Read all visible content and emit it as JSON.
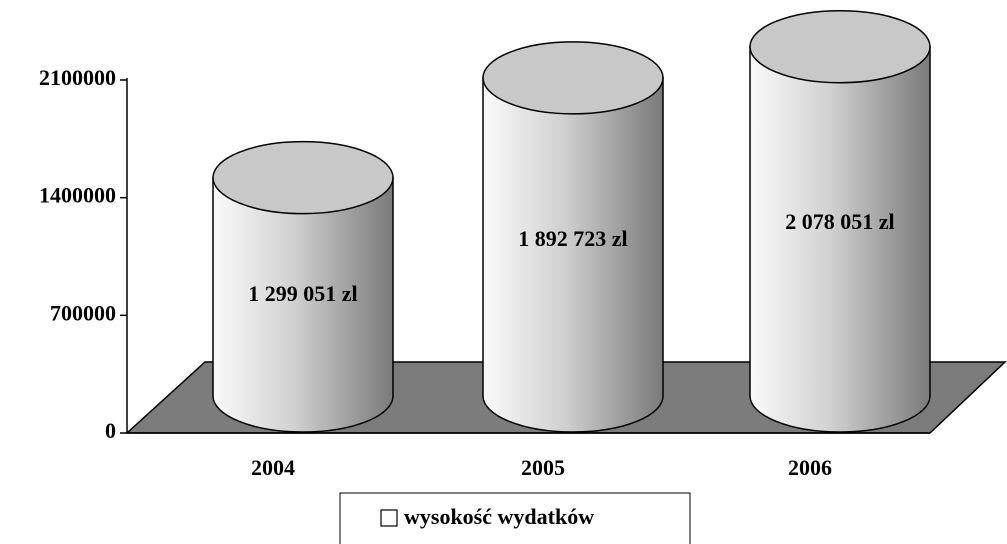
{
  "chart_data": {
    "type": "cylinder",
    "categories": [
      "2004",
      "2005",
      "2006"
    ],
    "series": [
      {
        "name": "wysokość wydatków",
        "color": "#d8d8d8",
        "values": [
          1299051,
          1892723,
          2078051
        ],
        "value_labels": [
          "1 299 051 zl",
          "1 892 723 zl",
          "2 078 051 zl"
        ]
      }
    ],
    "ylim": [
      0,
      2100000
    ],
    "yticks": [
      0,
      700000,
      1400000,
      2100000
    ]
  }
}
